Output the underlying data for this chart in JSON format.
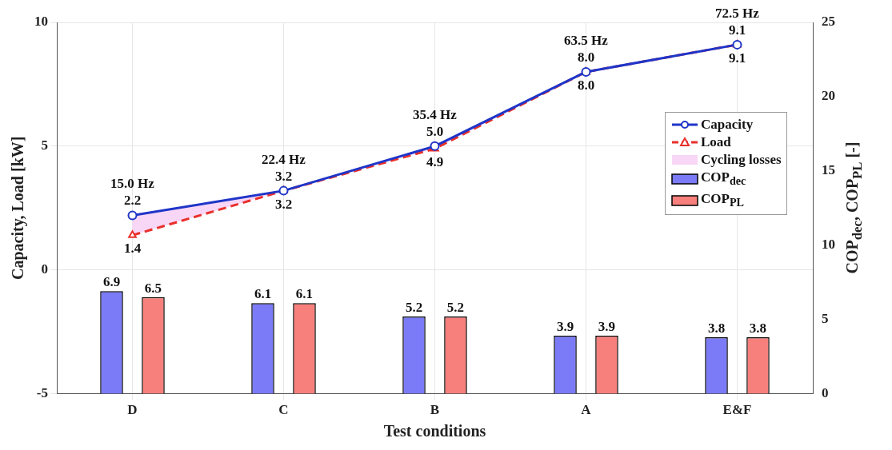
{
  "chart_data": {
    "type": "line",
    "xlabel": "Test conditions",
    "ylabel": "Capacity, Load [kW]",
    "y2label": "COP$_{dec}$, COP$_{PL}$ [-]",
    "categories": [
      "D",
      "C",
      "B",
      "A",
      "E&F"
    ],
    "series": [
      {
        "name": "Capacity",
        "color": "#1f35c8",
        "marker": "circle",
        "line_style": "solid",
        "values": [
          2.2,
          3.2,
          5.0,
          8.0,
          9.1
        ],
        "value_labels": [
          "2.2",
          "3.2",
          "5.0",
          "8.0",
          "9.1"
        ]
      },
      {
        "name": "Load",
        "color": "#e8302c",
        "marker": "triangle",
        "line_style": "dashed",
        "values": [
          1.4,
          3.2,
          4.9,
          8.0,
          9.1
        ],
        "value_labels": [
          "1.4",
          "3.2",
          "4.9",
          "8.0",
          "9.1"
        ]
      },
      {
        "name": "Cycling losses",
        "type": "area",
        "color": "#f8d6f6",
        "lower": [
          1.4,
          3.2,
          4.9,
          8.0,
          9.1
        ],
        "upper": [
          2.2,
          3.2,
          5.0,
          8.0,
          9.1
        ],
        "values": [
          null,
          null,
          null,
          null,
          null
        ]
      },
      {
        "name": "COP$_{dec}$",
        "type": "bar",
        "axis": "y2",
        "color": "#7b7bf7",
        "values": [
          6.9,
          6.1,
          5.2,
          3.9,
          3.8
        ],
        "value_labels": [
          "6.9",
          "6.1",
          "5.2",
          "3.9",
          "3.8"
        ]
      },
      {
        "name": "COP$_{PL}$",
        "type": "bar",
        "axis": "y2",
        "color": "#f7807c",
        "values": [
          6.5,
          6.1,
          5.2,
          3.9,
          3.8
        ],
        "value_labels": [
          "6.5",
          "6.1",
          "5.2",
          "3.9",
          "3.8"
        ]
      }
    ],
    "ylim": [
      -5,
      10
    ],
    "yticks": [
      -5,
      0,
      5,
      10
    ],
    "y2lim": [
      0,
      25
    ],
    "y2ticks": [
      0,
      5,
      10,
      15,
      20,
      25
    ],
    "grid": true,
    "legend": "right",
    "annotations": [
      {
        "text": "15.0 Hz",
        "x": "D",
        "y": 2.2
      },
      {
        "text": "22.4 Hz",
        "x": "C",
        "y": 3.2
      },
      {
        "text": "35.4 Hz",
        "x": "B",
        "y": 5.0
      },
      {
        "text": "63.5 Hz",
        "x": "A",
        "y": 8.0
      },
      {
        "text": "72.5 Hz",
        "x": "E&F",
        "y": 9.1
      }
    ]
  }
}
